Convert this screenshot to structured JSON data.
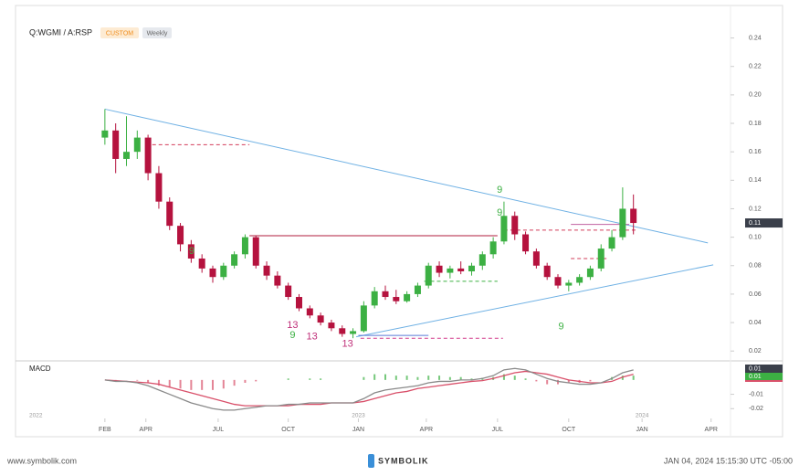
{
  "chart_data": [
    {
      "type": "candlestick",
      "title": "Q:WGMI / A:RSP",
      "badges": [
        "CUSTOM",
        "Weekly"
      ],
      "open": [
        0.17,
        0.175,
        0.155,
        0.16,
        0.17,
        0.145,
        0.125,
        0.108,
        0.095,
        0.085,
        0.078,
        0.072,
        0.08,
        0.088,
        0.1,
        0.08,
        0.073,
        0.066,
        0.058,
        0.05,
        0.045,
        0.04,
        0.036,
        0.032,
        0.034,
        0.052,
        0.062,
        0.058,
        0.055,
        0.06,
        0.066,
        0.08,
        0.075,
        0.078,
        0.076,
        0.08,
        0.088,
        0.097,
        0.115,
        0.102,
        0.09,
        0.08,
        0.072,
        0.066,
        0.068,
        0.072,
        0.078,
        0.092,
        0.1,
        0.12
      ],
      "high": [
        0.19,
        0.18,
        0.185,
        0.175,
        0.172,
        0.15,
        0.128,
        0.11,
        0.098,
        0.088,
        0.08,
        0.082,
        0.09,
        0.102,
        0.101,
        0.083,
        0.076,
        0.068,
        0.06,
        0.052,
        0.047,
        0.042,
        0.038,
        0.036,
        0.055,
        0.065,
        0.066,
        0.063,
        0.062,
        0.068,
        0.082,
        0.083,
        0.08,
        0.083,
        0.082,
        0.09,
        0.1,
        0.125,
        0.118,
        0.104,
        0.092,
        0.082,
        0.074,
        0.07,
        0.074,
        0.08,
        0.095,
        0.105,
        0.135,
        0.13
      ],
      "low": [
        0.165,
        0.145,
        0.15,
        0.155,
        0.14,
        0.12,
        0.105,
        0.09,
        0.082,
        0.075,
        0.068,
        0.07,
        0.078,
        0.085,
        0.078,
        0.07,
        0.064,
        0.056,
        0.048,
        0.043,
        0.038,
        0.034,
        0.03,
        0.029,
        0.033,
        0.05,
        0.056,
        0.053,
        0.054,
        0.058,
        0.064,
        0.072,
        0.071,
        0.074,
        0.073,
        0.077,
        0.085,
        0.095,
        0.098,
        0.088,
        0.078,
        0.07,
        0.064,
        0.062,
        0.066,
        0.07,
        0.076,
        0.09,
        0.098,
        0.102
      ],
      "close": [
        0.175,
        0.155,
        0.16,
        0.17,
        0.145,
        0.125,
        0.108,
        0.095,
        0.085,
        0.078,
        0.072,
        0.08,
        0.088,
        0.1,
        0.08,
        0.073,
        0.066,
        0.058,
        0.05,
        0.045,
        0.04,
        0.036,
        0.032,
        0.034,
        0.052,
        0.062,
        0.058,
        0.055,
        0.06,
        0.066,
        0.08,
        0.075,
        0.078,
        0.076,
        0.08,
        0.088,
        0.097,
        0.115,
        0.102,
        0.09,
        0.08,
        0.072,
        0.066,
        0.068,
        0.072,
        0.078,
        0.092,
        0.1,
        0.12,
        0.11
      ],
      "color_up": "#3cb043",
      "color_down": "#b5123e",
      "xlim": [
        -8.2,
        58
      ],
      "xticks": [
        {
          "value": 0,
          "label": "FEB"
        },
        {
          "value": 3.8,
          "label": "APR"
        },
        {
          "value": 10.5,
          "label": "JUL"
        },
        {
          "value": 17,
          "label": "OCT"
        },
        {
          "value": 23.5,
          "label": "JAN"
        },
        {
          "value": 29.8,
          "label": "APR"
        },
        {
          "value": 36.4,
          "label": "JUL"
        },
        {
          "value": 43,
          "label": "OCT"
        },
        {
          "value": 49.8,
          "label": "JAN"
        },
        {
          "value": 56.2,
          "label": "APR"
        }
      ],
      "year_ticks": [
        {
          "value": -6.4,
          "label": "2022"
        },
        {
          "value": 23.5,
          "label": "2023"
        },
        {
          "value": 49.8,
          "label": "2024"
        }
      ],
      "ylim": [
        0.015,
        0.25
      ],
      "yticks": [
        0.02,
        0.04,
        0.06,
        0.08,
        {
          "value": 0.1,
          "label": "0.10"
        },
        0.12,
        0.14,
        0.16,
        0.18,
        {
          "value": 0.2,
          "label": "0.20"
        },
        0.22,
        0.24
      ],
      "last_label": {
        "value": 0.11,
        "label": "0.11"
      },
      "trendlines": [
        {
          "x": [
            0,
            55.9
          ],
          "y": [
            0.19,
            0.096
          ],
          "color": "#6fb1e4"
        },
        {
          "x": [
            23.3,
            56.4
          ],
          "y": [
            0.03,
            0.0806
          ],
          "color": "#6fb1e4"
        }
      ],
      "levels": [
        {
          "x": [
            3.8,
            13.4
          ],
          "value": 0.165,
          "color": "#d23c5a",
          "dash": true
        },
        {
          "x": [
            13.4,
            36.4
          ],
          "value": 0.101,
          "color": "#b01e3c",
          "dash": false
        },
        {
          "x": [
            29.6,
            36.4
          ],
          "value": 0.069,
          "color": "#3cb043",
          "dash": true
        },
        {
          "x": [
            23.7,
            36.9
          ],
          "value": 0.029,
          "color": "#d23c8c",
          "dash": true
        },
        {
          "x": [
            23.5,
            30
          ],
          "value": 0.031,
          "color": "#5a7bd6",
          "dash": false
        },
        {
          "x": [
            37,
            49.4
          ],
          "value": 0.105,
          "color": "#d23c5a",
          "dash": true
        },
        {
          "x": [
            43.2,
            46.5
          ],
          "value": 0.085,
          "color": "#d23c5a",
          "dash": true
        },
        {
          "x": [
            43.2,
            48.6
          ],
          "value": 0.109,
          "color": "#c060a0",
          "dash": false
        }
      ],
      "annotations": [
        {
          "x": 36.6,
          "y": 0.133,
          "text": "9",
          "color": "#3cb043"
        },
        {
          "x": 36.6,
          "y": 0.117,
          "text": "9",
          "color": "#3cb043"
        },
        {
          "x": 8.05,
          "y": 0.09,
          "text": "9",
          "color": "#3cb043"
        },
        {
          "x": 17.4,
          "y": 0.031,
          "text": "9",
          "color": "#3cb043"
        },
        {
          "x": 42.3,
          "y": 0.037,
          "text": "9",
          "color": "#3cb043"
        },
        {
          "x": 17.4,
          "y": 0.038,
          "text": "13",
          "color": "#c0307a"
        },
        {
          "x": 19.2,
          "y": 0.03,
          "text": "13",
          "color": "#c0307a"
        },
        {
          "x": 22.5,
          "y": 0.025,
          "text": "13",
          "color": "#c0307a"
        }
      ]
    },
    {
      "type": "macd",
      "title": "MACD",
      "macd": [
        0,
        -0.001,
        -0.001,
        -0.002,
        -0.004,
        -0.007,
        -0.01,
        -0.013,
        -0.016,
        -0.018,
        -0.02,
        -0.021,
        -0.021,
        -0.02,
        -0.019,
        -0.018,
        -0.018,
        -0.017,
        -0.017,
        -0.016,
        -0.016,
        -0.016,
        -0.016,
        -0.016,
        -0.013,
        -0.009,
        -0.007,
        -0.006,
        -0.005,
        -0.004,
        -0.002,
        -0.001,
        -0.001,
        0,
        0,
        0.001,
        0.003,
        0.007,
        0.008,
        0.007,
        0.004,
        0.001,
        -0.001,
        -0.002,
        -0.003,
        -0.003,
        -0.002,
        0.001,
        0.005,
        0.007
      ],
      "signal": [
        0,
        -0.0005,
        -0.001,
        -0.0015,
        -0.002,
        -0.003,
        -0.005,
        -0.007,
        -0.009,
        -0.011,
        -0.013,
        -0.015,
        -0.017,
        -0.018,
        -0.018,
        -0.018,
        -0.018,
        -0.018,
        -0.017,
        -0.017,
        -0.017,
        -0.016,
        -0.016,
        -0.016,
        -0.015,
        -0.013,
        -0.011,
        -0.009,
        -0.008,
        -0.006,
        -0.005,
        -0.004,
        -0.003,
        -0.002,
        -0.001,
        -0.0005,
        0.001,
        0.003,
        0.005,
        0.006,
        0.005,
        0.004,
        0.002,
        0,
        -0.001,
        -0.002,
        -0.002,
        -0.001,
        0.002,
        0.004
      ],
      "histogram": [
        0,
        -0.0005,
        0,
        -0.0005,
        -0.002,
        -0.004,
        -0.005,
        -0.006,
        -0.007,
        -0.007,
        -0.007,
        -0.006,
        -0.004,
        -0.002,
        -0.001,
        0,
        0,
        0.001,
        0,
        0.001,
        0.001,
        0,
        0,
        0,
        0.002,
        0.004,
        0.004,
        0.003,
        0.003,
        0.002,
        0.003,
        0.003,
        0.002,
        0.002,
        0.001,
        0.0015,
        0.002,
        0.004,
        0.003,
        0.001,
        -0.001,
        -0.003,
        -0.003,
        -0.002,
        -0.002,
        -0.001,
        0,
        0.002,
        0.003,
        0.003
      ],
      "macd_color": "#8a8a8a",
      "signal_color": "#d9506a",
      "hist_up": "#3cb043",
      "hist_down": "#d9506a",
      "ylim": [
        -0.023,
        0.012
      ],
      "yticks": [
        -0.01,
        -0.02
      ],
      "current_labels": [
        "0.01",
        "0.01"
      ]
    }
  ],
  "footer": {
    "url": "www.symbolik.com",
    "brand": "SYMBOLIK",
    "timestamp": "JAN 04, 2024 15:15:30 UTC -05:00"
  }
}
